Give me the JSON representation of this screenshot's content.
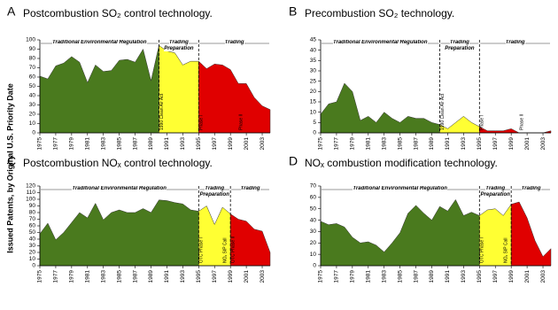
{
  "y_axis_label": "Issued Patents, by Original U.S. Priority Date",
  "chart_data": [
    {
      "type": "area",
      "panel": "A",
      "title": "Postcombustion SO₂ control technology.",
      "x": [
        1975,
        1976,
        1977,
        1978,
        1979,
        1980,
        1981,
        1982,
        1983,
        1984,
        1985,
        1986,
        1987,
        1988,
        1989,
        1990,
        1991,
        1992,
        1993,
        1994,
        1995,
        1996,
        1997,
        1998,
        1999,
        2000,
        2001,
        2002,
        2003,
        2004
      ],
      "series": [
        {
          "name": "Traditional Environmental Regulation",
          "color": "#4a7a1e",
          "values": [
            61,
            58,
            72,
            75,
            82,
            76,
            54,
            73,
            66,
            67,
            78,
            79,
            76,
            90,
            56,
            94,
            null,
            null,
            null,
            null,
            null,
            null,
            null,
            null,
            null,
            null,
            null,
            null,
            null,
            null
          ]
        },
        {
          "name": "Trading Preparation",
          "color": "#ffff33",
          "values": [
            null,
            null,
            null,
            null,
            null,
            null,
            null,
            null,
            null,
            null,
            null,
            null,
            null,
            null,
            null,
            94,
            88,
            86,
            73,
            77,
            77,
            null,
            null,
            null,
            null,
            null,
            null,
            null,
            null,
            null
          ]
        },
        {
          "name": "Trading",
          "color": "#e00000",
          "values": [
            null,
            null,
            null,
            null,
            null,
            null,
            null,
            null,
            null,
            null,
            null,
            null,
            null,
            null,
            null,
            null,
            null,
            null,
            null,
            null,
            77,
            69,
            74,
            73,
            68,
            53,
            53,
            38,
            29,
            25
          ]
        }
      ],
      "xlim": [
        1975,
        2004
      ],
      "xticks": [
        1975,
        1977,
        1979,
        1981,
        1983,
        1985,
        1987,
        1989,
        1991,
        1993,
        1995,
        1997,
        1999,
        2001,
        2003
      ],
      "ylim": [
        0,
        100
      ],
      "yticks": [
        0,
        10,
        20,
        30,
        40,
        50,
        60,
        70,
        80,
        90,
        100
      ],
      "annotations": [
        {
          "text": "1990 Clean Air Act",
          "x": 1990
        },
        {
          "text": "Phase I",
          "x": 1995
        },
        {
          "text": "Phase II",
          "x": 2000
        }
      ]
    },
    {
      "type": "area",
      "panel": "B",
      "title": "Precombustion SO₂ technology.",
      "x": [
        1975,
        1976,
        1977,
        1978,
        1979,
        1980,
        1981,
        1982,
        1983,
        1984,
        1985,
        1986,
        1987,
        1988,
        1989,
        1990,
        1991,
        1992,
        1993,
        1994,
        1995,
        1996,
        1997,
        1998,
        1999,
        2000,
        2001,
        2002,
        2003,
        2004
      ],
      "series": [
        {
          "name": "Traditional Environmental Regulation",
          "color": "#4a7a1e",
          "values": [
            9,
            14,
            15,
            24,
            20,
            6,
            8,
            5,
            10,
            7,
            5,
            8,
            7,
            7,
            5,
            4,
            null,
            null,
            null,
            null,
            null,
            null,
            null,
            null,
            null,
            null,
            null,
            null,
            null,
            null
          ]
        },
        {
          "name": "Trading Preparation",
          "color": "#ffff33",
          "values": [
            null,
            null,
            null,
            null,
            null,
            null,
            null,
            null,
            null,
            null,
            null,
            null,
            null,
            null,
            null,
            4,
            2,
            5,
            8,
            5,
            3,
            null,
            null,
            null,
            null,
            null,
            null,
            null,
            null,
            null
          ]
        },
        {
          "name": "Trading",
          "color": "#e00000",
          "values": [
            null,
            null,
            null,
            null,
            null,
            null,
            null,
            null,
            null,
            null,
            null,
            null,
            null,
            null,
            null,
            null,
            null,
            null,
            null,
            null,
            3,
            1,
            1,
            1,
            2,
            0,
            0,
            0,
            0,
            1
          ]
        }
      ],
      "xlim": [
        1975,
        2004
      ],
      "xticks": [
        1975,
        1977,
        1979,
        1981,
        1983,
        1985,
        1987,
        1989,
        1991,
        1993,
        1995,
        1997,
        1999,
        2001,
        2003
      ],
      "ylim": [
        0,
        45
      ],
      "yticks": [
        0,
        5,
        10,
        15,
        20,
        25,
        30,
        35,
        40,
        45
      ],
      "annotations": [
        {
          "text": "1990 Clean Air Act",
          "x": 1990
        },
        {
          "text": "Phase I",
          "x": 1995
        },
        {
          "text": "Phase II",
          "x": 2000
        }
      ]
    },
    {
      "type": "area",
      "panel": "C",
      "title": "Postcombustion NOₓ control technology.",
      "x": [
        1975,
        1976,
        1977,
        1978,
        1979,
        1980,
        1981,
        1982,
        1983,
        1984,
        1985,
        1986,
        1987,
        1988,
        1989,
        1990,
        1991,
        1992,
        1993,
        1994,
        1995,
        1996,
        1997,
        1998,
        1999,
        2000,
        2001,
        2002,
        2003,
        2004
      ],
      "series": [
        {
          "name": "Traditional Environmental Regulation",
          "color": "#4a7a1e",
          "values": [
            48,
            64,
            39,
            50,
            65,
            80,
            72,
            94,
            69,
            80,
            84,
            80,
            80,
            86,
            80,
            99,
            98,
            95,
            93,
            84,
            82,
            null,
            null,
            null,
            null,
            null,
            null,
            null,
            null,
            null
          ]
        },
        {
          "name": "Trading Preparation",
          "color": "#ffff33",
          "values": [
            null,
            null,
            null,
            null,
            null,
            null,
            null,
            null,
            null,
            null,
            null,
            null,
            null,
            null,
            null,
            null,
            null,
            null,
            null,
            null,
            82,
            90,
            62,
            88,
            78,
            null,
            null,
            null,
            null,
            null
          ]
        },
        {
          "name": "Trading",
          "color": "#e00000",
          "values": [
            null,
            null,
            null,
            null,
            null,
            null,
            null,
            null,
            null,
            null,
            null,
            null,
            null,
            null,
            null,
            null,
            null,
            null,
            null,
            null,
            null,
            null,
            null,
            null,
            78,
            70,
            67,
            55,
            52,
            20
          ]
        }
      ],
      "xlim": [
        1975,
        2004
      ],
      "xticks": [
        1975,
        1977,
        1979,
        1981,
        1983,
        1985,
        1987,
        1989,
        1991,
        1993,
        1995,
        1997,
        1999,
        2001,
        2003
      ],
      "ylim": [
        0,
        120
      ],
      "yticks": [
        0,
        10,
        20,
        30,
        40,
        50,
        60,
        70,
        80,
        90,
        100,
        110,
        120
      ],
      "annotations": [
        {
          "text": "OTC Phase I",
          "x": 1995
        },
        {
          "text": "NOₓ SIP Call",
          "x": 1998
        },
        {
          "text": "OTC Phase II",
          "x": 1999
        }
      ]
    },
    {
      "type": "area",
      "panel": "D",
      "title": "NOₓ combustion modification technology.",
      "x": [
        1975,
        1976,
        1977,
        1978,
        1979,
        1980,
        1981,
        1982,
        1983,
        1984,
        1985,
        1986,
        1987,
        1988,
        1989,
        1990,
        1991,
        1992,
        1993,
        1994,
        1995,
        1996,
        1997,
        1998,
        1999,
        2000,
        2001,
        2002,
        2003,
        2004
      ],
      "series": [
        {
          "name": "Traditional Environmental Regulation",
          "color": "#4a7a1e",
          "values": [
            39,
            36,
            37,
            34,
            25,
            20,
            21,
            18,
            12,
            20,
            29,
            46,
            53,
            46,
            40,
            52,
            48,
            58,
            44,
            47,
            44,
            null,
            null,
            null,
            null,
            null,
            null,
            null,
            null,
            null
          ]
        },
        {
          "name": "Trading Preparation",
          "color": "#ffff33",
          "values": [
            null,
            null,
            null,
            null,
            null,
            null,
            null,
            null,
            null,
            null,
            null,
            null,
            null,
            null,
            null,
            null,
            null,
            null,
            null,
            null,
            44,
            49,
            50,
            44,
            54,
            null,
            null,
            null,
            null,
            null
          ]
        },
        {
          "name": "Trading",
          "color": "#e00000",
          "values": [
            null,
            null,
            null,
            null,
            null,
            null,
            null,
            null,
            null,
            null,
            null,
            null,
            null,
            null,
            null,
            null,
            null,
            null,
            null,
            null,
            null,
            null,
            null,
            null,
            54,
            56,
            42,
            22,
            8,
            15
          ]
        }
      ],
      "xlim": [
        1975,
        2004
      ],
      "xticks": [
        1975,
        1977,
        1979,
        1981,
        1983,
        1985,
        1987,
        1989,
        1991,
        1993,
        1995,
        1997,
        1999,
        2001,
        2003
      ],
      "ylim": [
        0,
        70
      ],
      "yticks": [
        0,
        10,
        20,
        30,
        40,
        50,
        60,
        70
      ],
      "annotations": [
        {
          "text": "OTC Phase I",
          "x": 1995
        },
        {
          "text": "NOₓ SIP Call",
          "x": 1998
        }
      ]
    }
  ]
}
